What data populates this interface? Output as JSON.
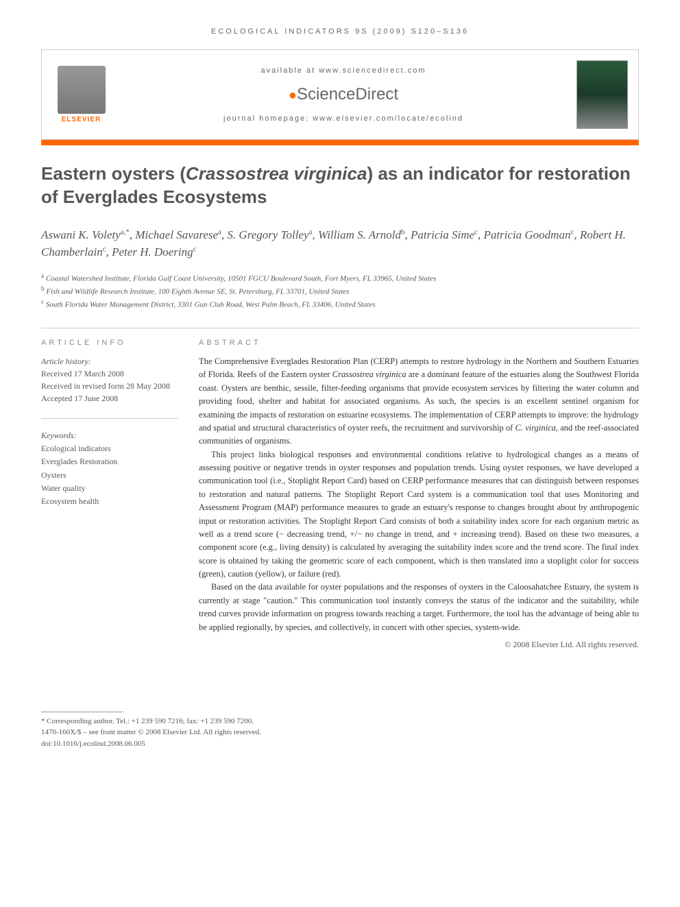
{
  "journal_header": "ECOLOGICAL INDICATORS 9S (2009) S120–S136",
  "top": {
    "elsevier_label": "ELSEVIER",
    "available": "available at www.sciencedirect.com",
    "sciencedirect": "ScienceDirect",
    "homepage": "journal homepage: www.elsevier.com/locate/ecolind"
  },
  "title_pre": "Eastern oysters (",
  "title_species": "Crassostrea virginica",
  "title_post": ") as an indicator for restoration of Everglades Ecosystems",
  "authors_html": "Aswani K. Volety",
  "authors": [
    {
      "name": "Aswani K. Volety",
      "sup": "a,*"
    },
    {
      "name": "Michael Savarese",
      "sup": "a"
    },
    {
      "name": "S. Gregory Tolley",
      "sup": "a"
    },
    {
      "name": "William S. Arnold",
      "sup": "b"
    },
    {
      "name": "Patricia Sime",
      "sup": "c"
    },
    {
      "name": "Patricia Goodman",
      "sup": "c"
    },
    {
      "name": "Robert H. Chamberlain",
      "sup": "c"
    },
    {
      "name": "Peter H. Doering",
      "sup": "c"
    }
  ],
  "affiliations": [
    {
      "sup": "a",
      "text": "Coastal Watershed Institute, Florida Gulf Coast University, 10501 FGCU Boulevard South, Fort Myers, FL 33965, United States"
    },
    {
      "sup": "b",
      "text": "Fish and Wildlife Research Institute, 100 Eighth Avenue SE, St. Petersburg, FL 33701, United States"
    },
    {
      "sup": "c",
      "text": "South Florida Water Management District, 3301 Gun Club Road, West Palm Beach, FL 33406, United States"
    }
  ],
  "article_info": {
    "heading": "ARTICLE INFO",
    "history_label": "Article history:",
    "received": "Received 17 March 2008",
    "revised": "Received in revised form 28 May 2008",
    "accepted": "Accepted 17 June 2008"
  },
  "keywords": {
    "label": "Keywords:",
    "items": [
      "Ecological indicators",
      "Everglades Restoration",
      "Oysters",
      "Water quality",
      "Ecosystem health"
    ]
  },
  "abstract": {
    "heading": "ABSTRACT",
    "p1_a": "The Comprehensive Everglades Restoration Plan (CERP) attempts to restore hydrology in the Northern and Southern Estuaries of Florida. Reefs of the Eastern oyster ",
    "p1_species1": "Crassostrea virginica",
    "p1_b": " are a dominant feature of the estuaries along the Southwest Florida coast. Oysters are benthic, sessile, filter-feeding organisms that provide ecosystem services by filtering the water column and providing food, shelter and habitat for associated organisms. As such, the species is an excellent sentinel organism for examining the impacts of restoration on estuarine ecosystems. The implementation of CERP attempts to improve: the hydrology and spatial and structural characteristics of oyster reefs, the recruitment and survivorship of ",
    "p1_species2": "C. virginica",
    "p1_c": ", and the reef-associated communities of organisms.",
    "p2": "This project links biological responses and environmental conditions relative to hydrological changes as a means of assessing positive or negative trends in oyster responses and population trends. Using oyster responses, we have developed a communication tool (i.e., Stoplight Report Card) based on CERP performance measures that can distinguish between responses to restoration and natural patterns. The Stoplight Report Card system is a communication tool that uses Monitoring and Assessment Program (MAP) performance measures to grade an estuary's response to changes brought about by anthropogenic input or restoration activities. The Stoplight Report Card consists of both a suitability index score for each organism metric as well as a trend score (− decreasing trend, +/− no change in trend, and + increasing trend). Based on these two measures, a component score (e.g., living density) is calculated by averaging the suitability index score and the trend score. The final index score is obtained by taking the geometric score of each component, which is then translated into a stoplight color for success (green), caution (yellow), or failure (red).",
    "p3": "Based on the data available for oyster populations and the responses of oysters in the Caloosahatchee Estuary, the system is currently at stage \"caution.\" This communication tool instantly conveys the status of the indicator and the suitability, while trend curves provide information on progress towards reaching a target. Furthermore, the tool has the advantage of being able to be applied regionally, by species, and collectively, in concert with other species, system-wide.",
    "copyright": "© 2008 Elsevier Ltd. All rights reserved."
  },
  "footer": {
    "corresponding": "* Corresponding author. Tel.: +1 239 590 7216; fax: +1 239 590 7200.",
    "issn": "1470-160X/$ – see front matter © 2008 Elsevier Ltd. All rights reserved.",
    "doi": "doi:10.1016/j.ecolind.2008.06.005"
  },
  "colors": {
    "accent": "#ff6600",
    "text_main": "#333333",
    "text_muted": "#555555",
    "text_light": "#888888",
    "border": "#cccccc"
  }
}
